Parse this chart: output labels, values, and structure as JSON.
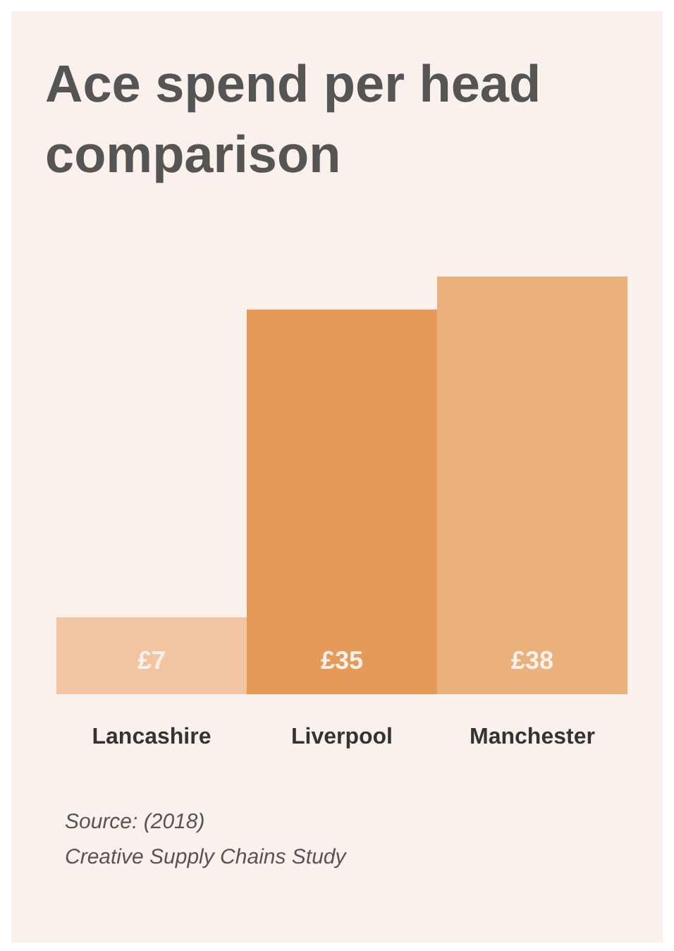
{
  "chart_data": {
    "type": "bar",
    "title": "Ace spend per head comparison",
    "categories": [
      "Lancashire",
      "Liverpool",
      "Manchester"
    ],
    "values": [
      7,
      35,
      38
    ],
    "colors": [
      "#f2c5a2",
      "#e59a58",
      "#ebb17d"
    ],
    "value_labels": [
      "£7",
      "£35",
      "£38"
    ],
    "annotations": [
      "Source: (2018)",
      "Creative Supply Chains Study"
    ]
  }
}
